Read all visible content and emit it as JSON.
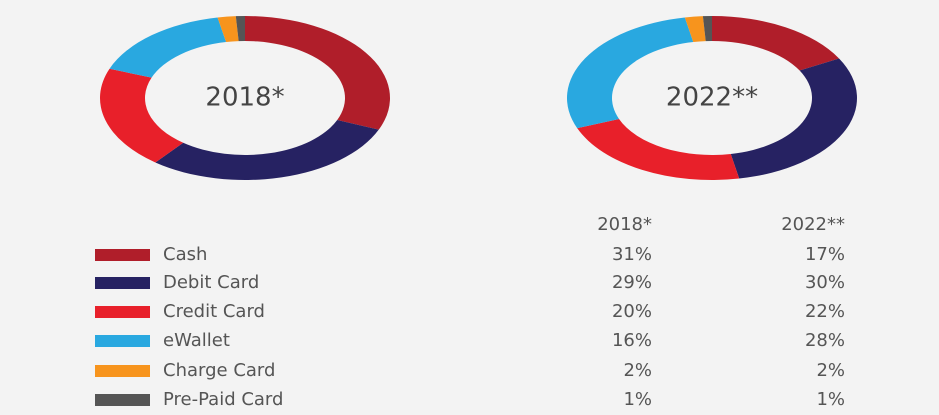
{
  "chart_data": [
    {
      "type": "donut",
      "title": "2018*",
      "categories": [
        "Cash",
        "Debit Card",
        "Credit Card",
        "eWallet",
        "Charge Card",
        "Pre-Paid Card"
      ],
      "values": [
        31,
        29,
        20,
        16,
        2,
        1
      ],
      "value_labels": [
        "31%",
        "29%",
        "20%",
        "16%",
        "2%",
        "1%"
      ],
      "colors": [
        "#b01e2a",
        "#262262",
        "#e8202a",
        "#29a8e0",
        "#f7941d",
        "#555555"
      ]
    },
    {
      "type": "donut",
      "title": "2022**",
      "categories": [
        "Cash",
        "Debit Card",
        "Credit Card",
        "eWallet",
        "Charge Card",
        "Pre-Paid Card"
      ],
      "values": [
        17,
        30,
        22,
        28,
        2,
        1
      ],
      "value_labels": [
        "17%",
        "30%",
        "22%",
        "28%",
        "2%",
        "1%"
      ],
      "colors": [
        "#b01e2a",
        "#262262",
        "#e8202a",
        "#29a8e0",
        "#f7941d",
        "#555555"
      ]
    }
  ]
}
